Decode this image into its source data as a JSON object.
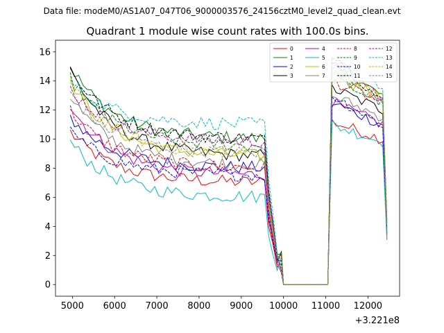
{
  "suptitle": "Data file: modeM0/AS1A07_047T06_9000003576_24156cztM0_level2_quad_clean.evt",
  "chart_data": {
    "type": "line",
    "title": "Quadrant 1 module wise count rates with 100.0s bins.",
    "xlabel": "",
    "ylabel": "",
    "x_offset_label": "+3.221e8",
    "xlim": [
      4600,
      12750
    ],
    "ylim": [
      -0.8,
      16.8
    ],
    "x_ticks": [
      5000,
      6000,
      7000,
      8000,
      9000,
      10000,
      11000,
      12000
    ],
    "x_tick_labels": [
      "5000",
      "6000",
      "7000",
      "8000",
      "9000",
      "10000",
      "11000",
      "12000"
    ],
    "y_ticks": [
      0,
      2,
      4,
      6,
      8,
      10,
      12,
      14,
      16
    ],
    "y_tick_labels": [
      "0",
      "2",
      "4",
      "6",
      "8",
      "10",
      "12",
      "14",
      "16"
    ],
    "legend_position": "top-right",
    "x_segments": [
      {
        "start": 4950,
        "end": 9550,
        "step": 100
      },
      {
        "start": 9650,
        "end": 9950,
        "step": 100
      },
      {
        "start": 10000,
        "end": 11050,
        "step": 350
      },
      {
        "start": 11150,
        "end": 12450,
        "step": 100
      }
    ],
    "series": [
      {
        "name": "0",
        "color": "#ff0000",
        "dash": "solid",
        "level": 7.0,
        "start": 10.5,
        "peak": 11.2,
        "burst": 10.0
      },
      {
        "name": "1",
        "color": "#008000",
        "dash": "solid",
        "level": 10.0,
        "start": 15.0,
        "peak": 15.0,
        "burst": 13.0
      },
      {
        "name": "2",
        "color": "#0000ff",
        "dash": "solid",
        "level": 8.0,
        "start": 11.5,
        "peak": 12.5,
        "burst": 11.0
      },
      {
        "name": "3",
        "color": "#000000",
        "dash": "solid",
        "level": 8.8,
        "start": 14.8,
        "peak": 13.5,
        "burst": 12.0
      },
      {
        "name": "4",
        "color": "#bf00bf",
        "dash": "solid",
        "level": 7.5,
        "start": 12.3,
        "peak": 12.5,
        "burst": 11.0
      },
      {
        "name": "5",
        "color": "#00bfbf",
        "dash": "solid",
        "level": 6.0,
        "start": 9.8,
        "peak": 11.0,
        "burst": 9.8
      },
      {
        "name": "6",
        "color": "#bfbf00",
        "dash": "solid",
        "level": 8.8,
        "start": 14.0,
        "peak": 14.5,
        "burst": 12.8
      },
      {
        "name": "7",
        "color": "#808080",
        "dash": "solid",
        "level": 8.2,
        "start": 13.0,
        "peak": 13.0,
        "burst": 11.5
      },
      {
        "name": "8",
        "color": "#ff0000",
        "dash": "dashed",
        "level": 8.0,
        "start": 12.0,
        "peak": 14.0,
        "burst": 12.5
      },
      {
        "name": "9",
        "color": "#008000",
        "dash": "dashed",
        "level": 9.5,
        "start": 14.2,
        "peak": 14.2,
        "burst": 12.5
      },
      {
        "name": "10",
        "color": "#0000ff",
        "dash": "dashed",
        "level": 7.5,
        "start": 10.5,
        "peak": 13.0,
        "burst": 11.0
      },
      {
        "name": "11",
        "color": "#000000",
        "dash": "dashed",
        "level": 10.0,
        "start": 14.8,
        "peak": 16.0,
        "burst": 12.5
      },
      {
        "name": "12",
        "color": "#bf00bf",
        "dash": "dashed",
        "level": 9.8,
        "start": 13.5,
        "peak": 15.5,
        "burst": 12.8
      },
      {
        "name": "13",
        "color": "#00bfbf",
        "dash": "dashed",
        "level": 11.0,
        "start": 14.0,
        "peak": 15.0,
        "burst": 13.5
      },
      {
        "name": "14",
        "color": "#bfbf00",
        "dash": "dashed",
        "level": 9.0,
        "start": 13.8,
        "peak": 14.8,
        "burst": 13.0
      },
      {
        "name": "15",
        "color": "#808080",
        "dash": "dashed",
        "level": 9.0,
        "start": 13.2,
        "peak": 14.5,
        "burst": 12.8
      }
    ]
  }
}
